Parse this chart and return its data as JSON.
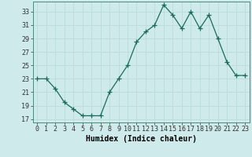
{
  "x": [
    0,
    1,
    2,
    3,
    4,
    5,
    6,
    7,
    8,
    9,
    10,
    11,
    12,
    13,
    14,
    15,
    16,
    17,
    18,
    19,
    20,
    21,
    22,
    23
  ],
  "y": [
    23,
    23,
    21.5,
    19.5,
    18.5,
    17.5,
    17.5,
    17.5,
    21,
    23,
    25,
    28.5,
    30,
    31,
    34,
    32.5,
    30.5,
    33,
    30.5,
    32.5,
    29,
    25.5,
    23.5,
    23.5
  ],
  "line_color": "#1a6b5e",
  "marker": "+",
  "markersize": 4,
  "linewidth": 0.9,
  "bg_color": "#ceeaea",
  "grid_major_color": "#b8d8d8",
  "grid_minor_color": "#d4eaea",
  "xlabel": "Humidex (Indice chaleur)",
  "xlabel_fontsize": 7,
  "yticks": [
    17,
    19,
    21,
    23,
    25,
    27,
    29,
    31,
    33
  ],
  "xticks": [
    0,
    1,
    2,
    3,
    4,
    5,
    6,
    7,
    8,
    9,
    10,
    11,
    12,
    13,
    14,
    15,
    16,
    17,
    18,
    19,
    20,
    21,
    22,
    23
  ],
  "xlim": [
    -0.5,
    23.5
  ],
  "ylim": [
    16.5,
    34.5
  ],
  "tick_fontsize": 6,
  "spine_color": "#4a8a7a"
}
